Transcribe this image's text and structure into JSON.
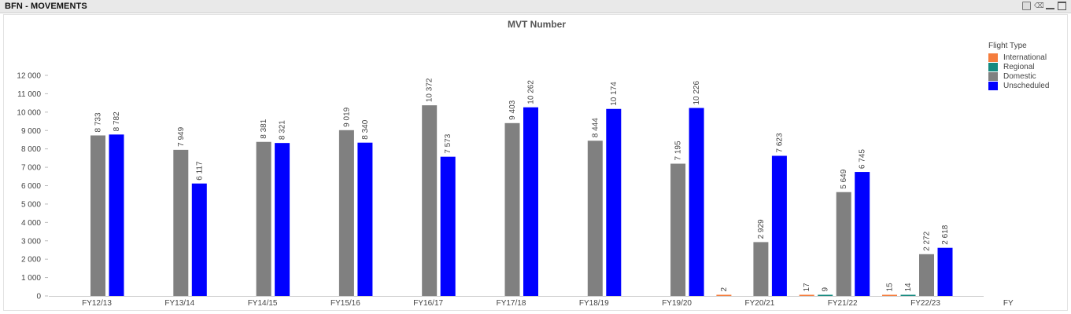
{
  "panel": {
    "title": "BFN - MOVEMENTS",
    "tools": [
      "print-icon",
      "clear-selections-icon",
      "minimize-icon",
      "maximize-icon"
    ]
  },
  "chart_data": {
    "type": "bar",
    "title": "MVT Number",
    "xlabel": "",
    "ylabel": "",
    "ylim": [
      0,
      12000
    ],
    "yticks": [
      0,
      1000,
      2000,
      3000,
      4000,
      5000,
      6000,
      7000,
      8000,
      9000,
      10000,
      11000,
      12000
    ],
    "ytick_labels": [
      "0",
      "1 000",
      "2 000",
      "3 000",
      "4 000",
      "5 000",
      "6 000",
      "7 000",
      "8 000",
      "9 000",
      "10 000",
      "11 000",
      "12 000"
    ],
    "categories": [
      "FY12/13",
      "FY13/14",
      "FY14/15",
      "FY15/16",
      "FY16/17",
      "FY17/18",
      "FY18/19",
      "FY19/20",
      "FY20/21",
      "FY21/22",
      "FY22/23",
      "FY"
    ],
    "legend_title": "Flight Type",
    "legend_position": "top-right",
    "grid": false,
    "series": [
      {
        "name": "International",
        "color": "#f57d3d",
        "values": [
          null,
          null,
          null,
          null,
          null,
          null,
          null,
          null,
          2,
          17,
          15,
          null
        ],
        "labels": [
          null,
          null,
          null,
          null,
          null,
          null,
          null,
          null,
          "2",
          "17",
          "15",
          null
        ]
      },
      {
        "name": "Regional",
        "color": "#158a80",
        "values": [
          null,
          null,
          null,
          null,
          null,
          null,
          null,
          null,
          null,
          9,
          14,
          null
        ],
        "labels": [
          null,
          null,
          null,
          null,
          null,
          null,
          null,
          null,
          null,
          "9",
          "14",
          null
        ]
      },
      {
        "name": "Domestic",
        "color": "#808080",
        "values": [
          8733,
          7949,
          8381,
          9019,
          10372,
          9403,
          8444,
          7195,
          2929,
          5649,
          2272,
          null
        ],
        "labels": [
          "8 733",
          "7 949",
          "8 381",
          "9 019",
          "10 372",
          "9 403",
          "8 444",
          "7 195",
          "2 929",
          "5 649",
          "2 272",
          null
        ]
      },
      {
        "name": "Unscheduled",
        "color": "#0000ff",
        "values": [
          8782,
          6117,
          8321,
          8340,
          7573,
          10262,
          10174,
          10226,
          7623,
          6745,
          2618,
          null
        ],
        "labels": [
          "8 782",
          "6 117",
          "8 321",
          "8 340",
          "7 573",
          "10 262",
          "10 174",
          "10 226",
          "7 623",
          "6 745",
          "2 618",
          null
        ]
      }
    ]
  }
}
